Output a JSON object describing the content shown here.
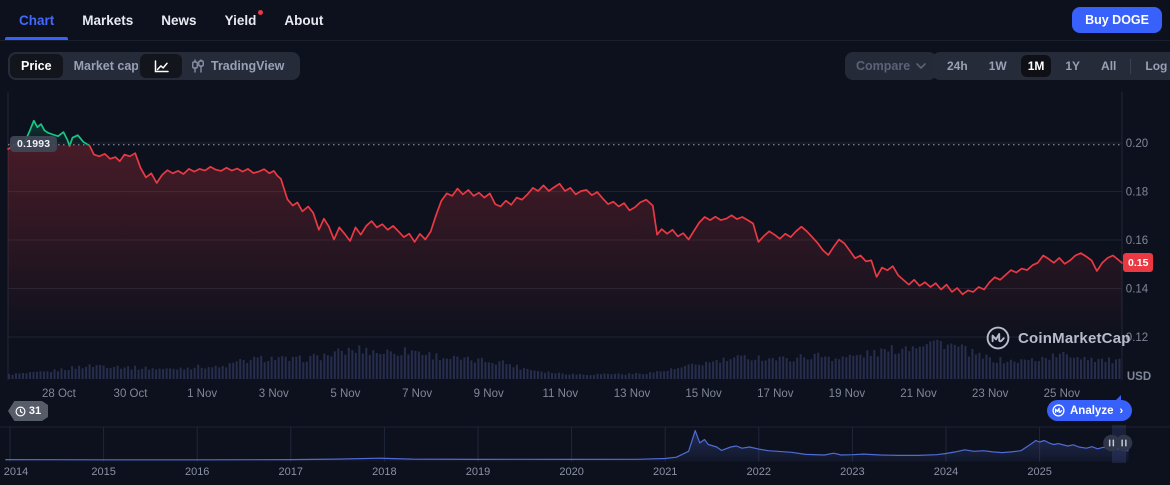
{
  "header": {
    "tabs": [
      {
        "label": "Chart",
        "active": true
      },
      {
        "label": "Markets",
        "active": false
      },
      {
        "label": "News",
        "active": false
      },
      {
        "label": "Yield",
        "active": false,
        "has_red_dot": true
      },
      {
        "label": "About",
        "active": false
      }
    ],
    "buy_button_label": "Buy DOGE"
  },
  "toolbar": {
    "view_toggle": {
      "options": [
        "Price",
        "Market cap"
      ],
      "selected": "Price"
    },
    "chart_type_toggle": {
      "selected": "line-chart",
      "tradingview_label": "TradingView"
    },
    "compare_label": "Compare",
    "ranges": {
      "options": [
        "24h",
        "1W",
        "1M",
        "1Y",
        "All",
        "Log"
      ],
      "selected": "1M"
    }
  },
  "chart": {
    "open_price_label": "0.1993",
    "last_price_label": "0.15",
    "y_unit_label": "USD",
    "watermark_label": "CoinMarketCap",
    "history_badge_label": "31",
    "analyze_label": "Analyze",
    "analyze_chevron": "›"
  },
  "colors": {
    "accent_blue": "#3861fb",
    "up_green": "#16c784",
    "down_red": "#ea3943",
    "axis_text": "#7f8799",
    "gridline": "#1d2232",
    "volume_bar": "#272d4d",
    "minimap_line": "#4f6bd5",
    "page_bg": "#0d111d"
  },
  "chart_data": [
    {
      "type": "line",
      "name": "DOGE/USD price, 1M range",
      "x_unit": "days since chart start (~26 Oct)",
      "y_unit": "USD",
      "open_price": 0.1993,
      "last_price": 0.1505,
      "ylim": [
        0.115,
        0.215
      ],
      "y_ticks": [
        {
          "v": 0.2,
          "label": "0.20"
        },
        {
          "v": 0.18,
          "label": "0.18"
        },
        {
          "v": 0.16,
          "label": "0.16"
        },
        {
          "v": 0.14,
          "label": "0.14"
        },
        {
          "v": 0.12,
          "label": "0.12"
        }
      ],
      "x_ticks": [
        {
          "t": 1.42,
          "label": "28 Oct"
        },
        {
          "t": 3.42,
          "label": "30 Oct"
        },
        {
          "t": 5.42,
          "label": "1 Nov"
        },
        {
          "t": 7.42,
          "label": "3 Nov"
        },
        {
          "t": 9.42,
          "label": "5 Nov"
        },
        {
          "t": 11.42,
          "label": "7 Nov"
        },
        {
          "t": 13.42,
          "label": "9 Nov"
        },
        {
          "t": 15.42,
          "label": "11 Nov"
        },
        {
          "t": 17.42,
          "label": "13 Nov"
        },
        {
          "t": 19.42,
          "label": "15 Nov"
        },
        {
          "t": 21.42,
          "label": "17 Nov"
        },
        {
          "t": 23.42,
          "label": "19 Nov"
        },
        {
          "t": 25.42,
          "label": "21 Nov"
        },
        {
          "t": 27.42,
          "label": "23 Nov"
        },
        {
          "t": 29.42,
          "label": "25 Nov"
        }
      ],
      "points": [
        [
          0,
          0.1975
        ],
        [
          0.15,
          0.1988
        ],
        [
          0.3,
          0.2002
        ],
        [
          0.45,
          0.1998
        ],
        [
          0.6,
          0.2048
        ],
        [
          0.72,
          0.2092
        ],
        [
          0.82,
          0.2065
        ],
        [
          0.92,
          0.2078
        ],
        [
          1.02,
          0.2052
        ],
        [
          1.12,
          0.2042
        ],
        [
          1.25,
          0.2035
        ],
        [
          1.4,
          0.2028
        ],
        [
          1.55,
          0.2045
        ],
        [
          1.66,
          0.2012
        ],
        [
          1.72,
          0.1987
        ],
        [
          1.8,
          0.2022
        ],
        [
          1.95,
          0.2032
        ],
        [
          2.1,
          0.2005
        ],
        [
          2.28,
          0.1988
        ],
        [
          2.4,
          0.1952
        ],
        [
          2.55,
          0.1945
        ],
        [
          2.7,
          0.1955
        ],
        [
          2.85,
          0.1935
        ],
        [
          3.0,
          0.1942
        ],
        [
          3.12,
          0.1925
        ],
        [
          3.25,
          0.1952
        ],
        [
          3.4,
          0.1945
        ],
        [
          3.55,
          0.1958
        ],
        [
          3.7,
          0.1898
        ],
        [
          3.85,
          0.1858
        ],
        [
          4.0,
          0.1875
        ],
        [
          4.15,
          0.1835
        ],
        [
          4.3,
          0.1868
        ],
        [
          4.45,
          0.1888
        ],
        [
          4.6,
          0.1875
        ],
        [
          4.75,
          0.1885
        ],
        [
          4.9,
          0.1872
        ],
        [
          5.05,
          0.1893
        ],
        [
          5.2,
          0.1882
        ],
        [
          5.35,
          0.1893
        ],
        [
          5.5,
          0.1886
        ],
        [
          5.65,
          0.1902
        ],
        [
          5.8,
          0.189
        ],
        [
          5.95,
          0.1885
        ],
        [
          6.1,
          0.1898
        ],
        [
          6.25,
          0.1886
        ],
        [
          6.4,
          0.1895
        ],
        [
          6.55,
          0.1882
        ],
        [
          6.7,
          0.1893
        ],
        [
          6.85,
          0.1876
        ],
        [
          7.0,
          0.1882
        ],
        [
          7.15,
          0.1892
        ],
        [
          7.3,
          0.1875
        ],
        [
          7.42,
          0.1885
        ],
        [
          7.52,
          0.1865
        ],
        [
          7.62,
          0.1852
        ],
        [
          7.8,
          0.1768
        ],
        [
          7.95,
          0.1742
        ],
        [
          8.08,
          0.1755
        ],
        [
          8.22,
          0.1718
        ],
        [
          8.38,
          0.1738
        ],
        [
          8.52,
          0.1712
        ],
        [
          8.68,
          0.1642
        ],
        [
          8.82,
          0.1688
        ],
        [
          8.96,
          0.1655
        ],
        [
          9.1,
          0.1602
        ],
        [
          9.25,
          0.1652
        ],
        [
          9.4,
          0.1625
        ],
        [
          9.55,
          0.1596
        ],
        [
          9.7,
          0.1652
        ],
        [
          9.85,
          0.1622
        ],
        [
          10.0,
          0.1658
        ],
        [
          10.15,
          0.1678
        ],
        [
          10.3,
          0.1652
        ],
        [
          10.45,
          0.1665
        ],
        [
          10.6,
          0.1642
        ],
        [
          10.75,
          0.1658
        ],
        [
          10.9,
          0.1636
        ],
        [
          11.05,
          0.1612
        ],
        [
          11.2,
          0.1626
        ],
        [
          11.35,
          0.1592
        ],
        [
          11.5,
          0.1625
        ],
        [
          11.65,
          0.1602
        ],
        [
          11.8,
          0.1635
        ],
        [
          11.95,
          0.1702
        ],
        [
          12.1,
          0.1762
        ],
        [
          12.25,
          0.1792
        ],
        [
          12.4,
          0.1782
        ],
        [
          12.55,
          0.1812
        ],
        [
          12.7,
          0.1788
        ],
        [
          12.85,
          0.1806
        ],
        [
          13.0,
          0.1782
        ],
        [
          13.15,
          0.1795
        ],
        [
          13.3,
          0.1775
        ],
        [
          13.45,
          0.1792
        ],
        [
          13.6,
          0.1748
        ],
        [
          13.75,
          0.1738
        ],
        [
          13.9,
          0.1762
        ],
        [
          14.05,
          0.1745
        ],
        [
          14.2,
          0.1775
        ],
        [
          14.35,
          0.1766
        ],
        [
          14.5,
          0.1788
        ],
        [
          14.65,
          0.1815
        ],
        [
          14.8,
          0.1802
        ],
        [
          14.95,
          0.1825
        ],
        [
          15.1,
          0.1802
        ],
        [
          15.25,
          0.1818
        ],
        [
          15.4,
          0.1832
        ],
        [
          15.55,
          0.1802
        ],
        [
          15.7,
          0.1815
        ],
        [
          15.85,
          0.1788
        ],
        [
          16.0,
          0.1802
        ],
        [
          16.15,
          0.1806
        ],
        [
          16.3,
          0.1785
        ],
        [
          16.45,
          0.1798
        ],
        [
          16.6,
          0.1772
        ],
        [
          16.75,
          0.1748
        ],
        [
          16.9,
          0.1758
        ],
        [
          17.05,
          0.1738
        ],
        [
          17.2,
          0.1752
        ],
        [
          17.35,
          0.1722
        ],
        [
          17.5,
          0.1735
        ],
        [
          17.65,
          0.1755
        ],
        [
          17.82,
          0.1766
        ],
        [
          18.0,
          0.1742
        ],
        [
          18.12,
          0.1622
        ],
        [
          18.25,
          0.1645
        ],
        [
          18.4,
          0.1626
        ],
        [
          18.55,
          0.1642
        ],
        [
          18.7,
          0.1615
        ],
        [
          18.85,
          0.1628
        ],
        [
          19.0,
          0.1602
        ],
        [
          19.15,
          0.1638
        ],
        [
          19.3,
          0.1672
        ],
        [
          19.45,
          0.1695
        ],
        [
          19.6,
          0.1682
        ],
        [
          19.75,
          0.1696
        ],
        [
          19.9,
          0.1682
        ],
        [
          20.05,
          0.1688
        ],
        [
          20.2,
          0.1702
        ],
        [
          20.35,
          0.1686
        ],
        [
          20.5,
          0.1695
        ],
        [
          20.65,
          0.1682
        ],
        [
          20.8,
          0.1668
        ],
        [
          20.95,
          0.1592
        ],
        [
          21.1,
          0.1616
        ],
        [
          21.25,
          0.1636
        ],
        [
          21.4,
          0.1622
        ],
        [
          21.55,
          0.1605
        ],
        [
          21.7,
          0.1626
        ],
        [
          21.85,
          0.1612
        ],
        [
          22.0,
          0.1636
        ],
        [
          22.15,
          0.1655
        ],
        [
          22.3,
          0.1636
        ],
        [
          22.45,
          0.1612
        ],
        [
          22.6,
          0.1588
        ],
        [
          22.75,
          0.1558
        ],
        [
          22.9,
          0.1538
        ],
        [
          23.05,
          0.1572
        ],
        [
          23.2,
          0.1602
        ],
        [
          23.35,
          0.1586
        ],
        [
          23.5,
          0.1556
        ],
        [
          23.65,
          0.1525
        ],
        [
          23.8,
          0.1536
        ],
        [
          23.95,
          0.1512
        ],
        [
          24.1,
          0.1516
        ],
        [
          24.25,
          0.1448
        ],
        [
          24.4,
          0.1486
        ],
        [
          24.55,
          0.1475
        ],
        [
          24.7,
          0.1492
        ],
        [
          24.85,
          0.1455
        ],
        [
          25.0,
          0.1435
        ],
        [
          25.15,
          0.1416
        ],
        [
          25.3,
          0.1436
        ],
        [
          25.45,
          0.1411
        ],
        [
          25.6,
          0.1426
        ],
        [
          25.75,
          0.1406
        ],
        [
          25.9,
          0.1422
        ],
        [
          26.05,
          0.1396
        ],
        [
          26.2,
          0.1416
        ],
        [
          26.35,
          0.1386
        ],
        [
          26.5,
          0.1402
        ],
        [
          26.65,
          0.1376
        ],
        [
          26.8,
          0.1392
        ],
        [
          26.95,
          0.1386
        ],
        [
          27.1,
          0.1406
        ],
        [
          27.25,
          0.1396
        ],
        [
          27.4,
          0.1426
        ],
        [
          27.55,
          0.1446
        ],
        [
          27.7,
          0.1436
        ],
        [
          27.85,
          0.1456
        ],
        [
          28.0,
          0.1476
        ],
        [
          28.15,
          0.1466
        ],
        [
          28.3,
          0.1482
        ],
        [
          28.45,
          0.1476
        ],
        [
          28.6,
          0.1496
        ],
        [
          28.75,
          0.1506
        ],
        [
          28.9,
          0.1536
        ],
        [
          29.05,
          0.1522
        ],
        [
          29.2,
          0.1506
        ],
        [
          29.35,
          0.1526
        ],
        [
          29.5,
          0.1502
        ],
        [
          29.65,
          0.1516
        ],
        [
          29.8,
          0.1536
        ],
        [
          29.95,
          0.1546
        ],
        [
          30.1,
          0.1532
        ],
        [
          30.25,
          0.1516
        ],
        [
          30.4,
          0.1472
        ],
        [
          30.55,
          0.1506
        ],
        [
          30.7,
          0.1526
        ],
        [
          30.85,
          0.1536
        ],
        [
          31.0,
          0.1518
        ],
        [
          31.1,
          0.1505
        ]
      ]
    },
    {
      "type": "bar",
      "name": "volume (normalized envelope)",
      "values": [
        0.12,
        0.15,
        0.18,
        0.25,
        0.32,
        0.36,
        0.34,
        0.3,
        0.28,
        0.26,
        0.3,
        0.33,
        0.3,
        0.45,
        0.52,
        0.55,
        0.5,
        0.55,
        0.62,
        0.72,
        0.78,
        0.7,
        0.72,
        0.75,
        0.62,
        0.55,
        0.5,
        0.48,
        0.45,
        0.3,
        0.22,
        0.16,
        0.13,
        0.12,
        0.14,
        0.13,
        0.15,
        0.2,
        0.28,
        0.38,
        0.45,
        0.52,
        0.58,
        0.55,
        0.52,
        0.58,
        0.62,
        0.55,
        0.6,
        0.68,
        0.75,
        0.85,
        1.0,
        0.95,
        0.8,
        0.6,
        0.5,
        0.46,
        0.5,
        0.58,
        0.64,
        0.58,
        0.5,
        0.46
      ]
    },
    {
      "type": "area",
      "name": "all-time overview (range selector)",
      "x_unit": "year",
      "x_ticks": [
        "2014",
        "2015",
        "2016",
        "2017",
        "2018",
        "2019",
        "2020",
        "2021",
        "2022",
        "2023",
        "2024",
        "2025"
      ],
      "selected_window": "1M (right edge)",
      "points": [
        [
          2013.95,
          0.012
        ],
        [
          2014.5,
          0.01
        ],
        [
          2015,
          0.008
        ],
        [
          2016,
          0.008
        ],
        [
          2017,
          0.014
        ],
        [
          2017.5,
          0.028
        ],
        [
          2017.95,
          0.058
        ],
        [
          2018.1,
          0.046
        ],
        [
          2018.3,
          0.03
        ],
        [
          2019,
          0.02
        ],
        [
          2019.5,
          0.024
        ],
        [
          2020,
          0.018
        ],
        [
          2020.7,
          0.022
        ],
        [
          2021.0,
          0.05
        ],
        [
          2021.12,
          0.09
        ],
        [
          2021.25,
          0.28
        ],
        [
          2021.32,
          0.95
        ],
        [
          2021.37,
          0.55
        ],
        [
          2021.42,
          0.66
        ],
        [
          2021.46,
          0.5
        ],
        [
          2021.55,
          0.42
        ],
        [
          2021.6,
          0.31
        ],
        [
          2021.7,
          0.42
        ],
        [
          2021.76,
          0.45
        ],
        [
          2021.82,
          0.38
        ],
        [
          2021.9,
          0.42
        ],
        [
          2022.0,
          0.35
        ],
        [
          2022.1,
          0.3
        ],
        [
          2022.2,
          0.28
        ],
        [
          2022.35,
          0.25
        ],
        [
          2022.5,
          0.18
        ],
        [
          2022.7,
          0.16
        ],
        [
          2022.8,
          0.22
        ],
        [
          2022.88,
          0.16
        ],
        [
          2023.0,
          0.17
        ],
        [
          2023.12,
          0.19
        ],
        [
          2023.3,
          0.16
        ],
        [
          2023.5,
          0.15
        ],
        [
          2023.7,
          0.15
        ],
        [
          2023.9,
          0.17
        ],
        [
          2024.0,
          0.21
        ],
        [
          2024.1,
          0.26
        ],
        [
          2024.2,
          0.33
        ],
        [
          2024.3,
          0.28
        ],
        [
          2024.4,
          0.3
        ],
        [
          2024.5,
          0.26
        ],
        [
          2024.6,
          0.24
        ],
        [
          2024.7,
          0.26
        ],
        [
          2024.8,
          0.3
        ],
        [
          2024.9,
          0.5
        ],
        [
          2024.96,
          0.63
        ],
        [
          2025.0,
          0.58
        ],
        [
          2025.05,
          0.63
        ],
        [
          2025.1,
          0.55
        ],
        [
          2025.15,
          0.5
        ],
        [
          2025.2,
          0.53
        ],
        [
          2025.3,
          0.45
        ],
        [
          2025.36,
          0.49
        ],
        [
          2025.42,
          0.42
        ],
        [
          2025.5,
          0.38
        ],
        [
          2025.56,
          0.43
        ],
        [
          2025.62,
          0.36
        ],
        [
          2025.68,
          0.41
        ],
        [
          2025.74,
          0.38
        ],
        [
          2025.78,
          0.43
        ],
        [
          2025.84,
          0.36
        ],
        [
          2025.9,
          0.31
        ],
        [
          2025.95,
          0.3
        ]
      ]
    }
  ]
}
